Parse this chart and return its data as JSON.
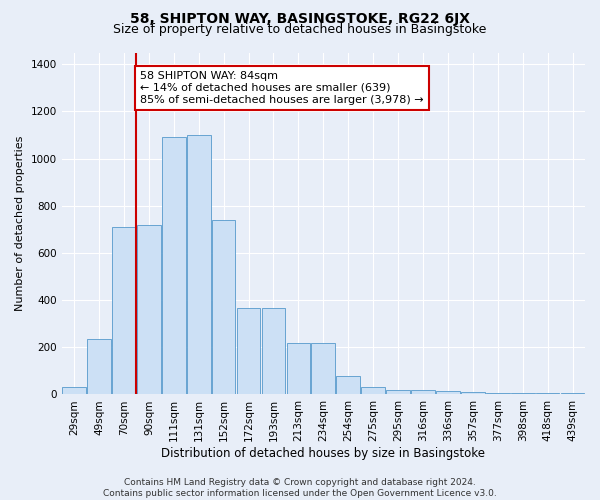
{
  "title": "58, SHIPTON WAY, BASINGSTOKE, RG22 6JX",
  "subtitle": "Size of property relative to detached houses in Basingstoke",
  "xlabel": "Distribution of detached houses by size in Basingstoke",
  "ylabel": "Number of detached properties",
  "categories": [
    "29sqm",
    "49sqm",
    "70sqm",
    "90sqm",
    "111sqm",
    "131sqm",
    "152sqm",
    "172sqm",
    "193sqm",
    "213sqm",
    "234sqm",
    "254sqm",
    "275sqm",
    "295sqm",
    "316sqm",
    "336sqm",
    "357sqm",
    "377sqm",
    "398sqm",
    "418sqm",
    "439sqm"
  ],
  "values": [
    30,
    235,
    710,
    720,
    1090,
    1100,
    740,
    365,
    365,
    220,
    220,
    80,
    30,
    20,
    20,
    15,
    10,
    5,
    5,
    5,
    5
  ],
  "bar_color": "#cce0f5",
  "bar_edge_color": "#5599cc",
  "vline_color": "#cc0000",
  "annotation_line1": "58 SHIPTON WAY: 84sqm",
  "annotation_line2": "← 14% of detached houses are smaller (639)",
  "annotation_line3": "85% of semi-detached houses are larger (3,978) →",
  "annotation_box_facecolor": "#ffffff",
  "annotation_box_edgecolor": "#cc0000",
  "ylim": [
    0,
    1450
  ],
  "yticks": [
    0,
    200,
    400,
    600,
    800,
    1000,
    1200,
    1400
  ],
  "background_color": "#e8eef8",
  "title_fontsize": 10,
  "subtitle_fontsize": 9,
  "xlabel_fontsize": 8.5,
  "ylabel_fontsize": 8,
  "tick_fontsize": 7.5,
  "annotation_fontsize": 8,
  "footer_fontsize": 6.5,
  "footer_line1": "Contains HM Land Registry data © Crown copyright and database right 2024.",
  "footer_line2": "Contains public sector information licensed under the Open Government Licence v3.0."
}
